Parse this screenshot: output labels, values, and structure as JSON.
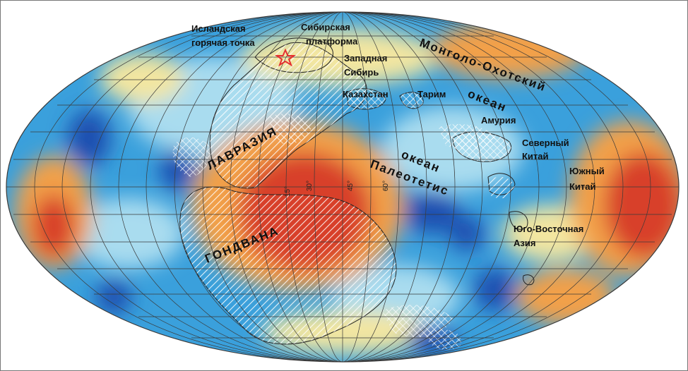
{
  "title": "",
  "projection": "Mollweide (equal-area)",
  "colors": {
    "ocean_base": "#3aa0dc",
    "fast_blue": "#1f4fb0",
    "light_blue": "#a9dcef",
    "neutral_yellow": "#f3e6a0",
    "warm_orange": "#f2a04a",
    "hot_red": "#d8402a",
    "continent_outline": "#222222",
    "graticule": "#3a3a3a",
    "star": "#e53030"
  },
  "longitude_labels": [
    "15°",
    "30°",
    "45°",
    "60°"
  ],
  "labels": {
    "iceland_1": "Исландская",
    "iceland_2": "горячая точка",
    "siberian_1": "Сибирская",
    "siberian_2": "платформа",
    "west_siberia_1": "Западная",
    "west_siberia_2": "Сибирь",
    "kazakhstan": "Казахстан",
    "tarim": "Тарим",
    "amuria": "Амурия",
    "north_china_1": "Северный",
    "north_china_2": "Китай",
    "south_china_1": "Южный",
    "south_china_2": "Китай",
    "se_asia_1": "Юго-Восточная",
    "se_asia_2": "Азия",
    "mongol_okhotsk": "Монголо-Охотский",
    "ocean_1": "океан",
    "ocean_2": "океан",
    "paleotethys": "Палеотетис",
    "laurasia": "ЛАВРАЗИЯ",
    "gondwana": "ГОНДВАНА"
  },
  "icons": {
    "star": "star-icon"
  }
}
